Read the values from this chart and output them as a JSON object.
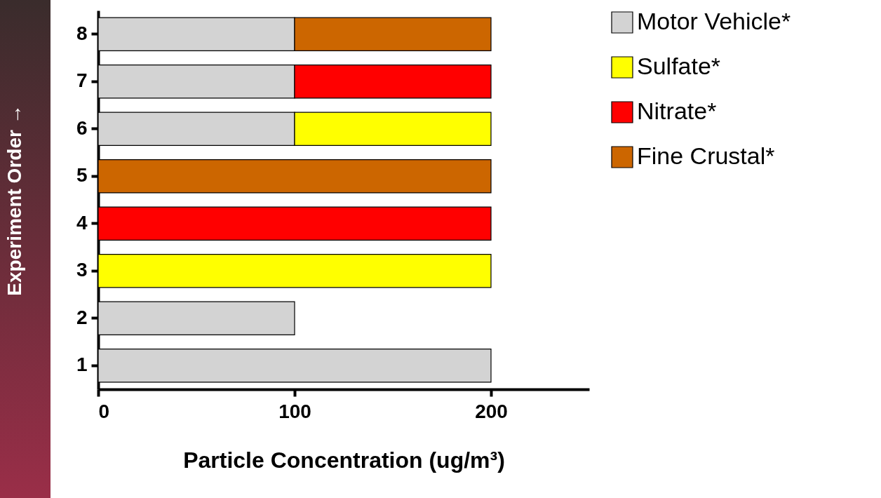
{
  "chart_data": {
    "type": "bar",
    "orientation": "horizontal",
    "stacked": true,
    "categories": [
      "8",
      "7",
      "6",
      "5",
      "4",
      "3",
      "2",
      "1"
    ],
    "series": [
      {
        "name": "Motor Vehicle*",
        "color": "#d3d3d3",
        "values": [
          100,
          100,
          100,
          null,
          null,
          null,
          100,
          200
        ]
      },
      {
        "name": "Sulfate*",
        "color": "#ffff00",
        "values": [
          null,
          null,
          100,
          null,
          null,
          200,
          null,
          null
        ]
      },
      {
        "name": "Nitrate*",
        "color": "#ff0000",
        "values": [
          null,
          100,
          null,
          null,
          200,
          null,
          null,
          null
        ]
      },
      {
        "name": "Fine Crustal*",
        "color": "#cc6600",
        "values": [
          100,
          null,
          null,
          200,
          null,
          null,
          null,
          null
        ]
      }
    ],
    "xlim": [
      0,
      250
    ],
    "xticks": [
      0,
      100,
      200
    ],
    "xlabel": "Particle Concentration (ug/m³)",
    "ylabel": "Experiment Order →",
    "legend": "right",
    "grid": false
  }
}
